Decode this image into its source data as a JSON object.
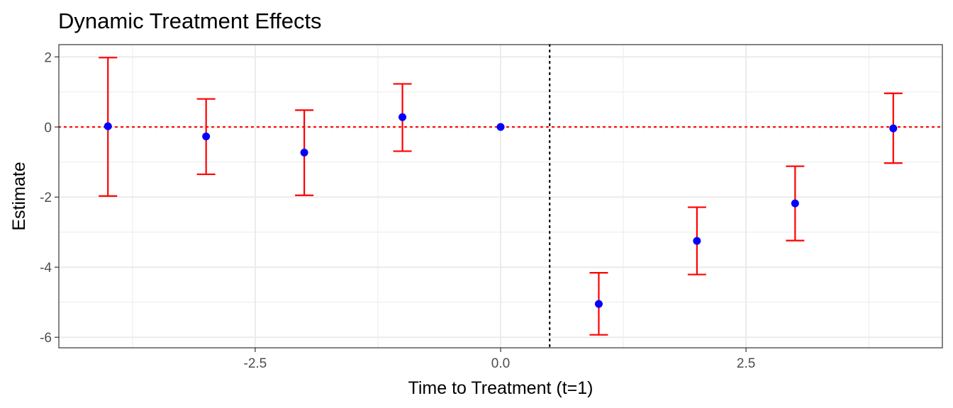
{
  "chart_data": {
    "type": "scatter",
    "title": "Dynamic Treatment Effects",
    "xlabel": "Time to Treatment (t=1)",
    "ylabel": "Estimate",
    "xlim": [
      -4.5,
      4.5
    ],
    "ylim": [
      -6.3,
      2.35
    ],
    "x_ticks": [
      -2.5,
      0.0,
      2.5
    ],
    "x_tick_labels": [
      "-2.5",
      "0.0",
      "2.5"
    ],
    "y_ticks": [
      -6,
      -4,
      -2,
      0,
      2
    ],
    "y_tick_labels": [
      "-6",
      "-4",
      "-2",
      "0",
      "2"
    ],
    "grid": true,
    "x": [
      -4,
      -3,
      -2,
      -1,
      0,
      1,
      2,
      3,
      4
    ],
    "estimate": [
      0.02,
      -0.27,
      -0.73,
      0.28,
      0.0,
      -5.05,
      -3.25,
      -2.18,
      -0.04
    ],
    "ci_lower": [
      -1.97,
      -1.35,
      -1.95,
      -0.69,
      0.0,
      -5.93,
      -4.21,
      -3.24,
      -1.03
    ],
    "ci_upper": [
      1.98,
      0.8,
      0.48,
      1.23,
      0.0,
      -4.16,
      -2.29,
      -1.12,
      0.96
    ],
    "reference_lines": {
      "horizontal_y": 0,
      "vertical_x": 0.5
    },
    "colors": {
      "points": "#0000ff",
      "error_bars": "#ff0000",
      "horizontal_reference": "#ff0000",
      "vertical_reference": "#000000",
      "grid": "#ebebeb",
      "panel_border": "#333333",
      "tick_label": "#4d4d4d"
    }
  }
}
